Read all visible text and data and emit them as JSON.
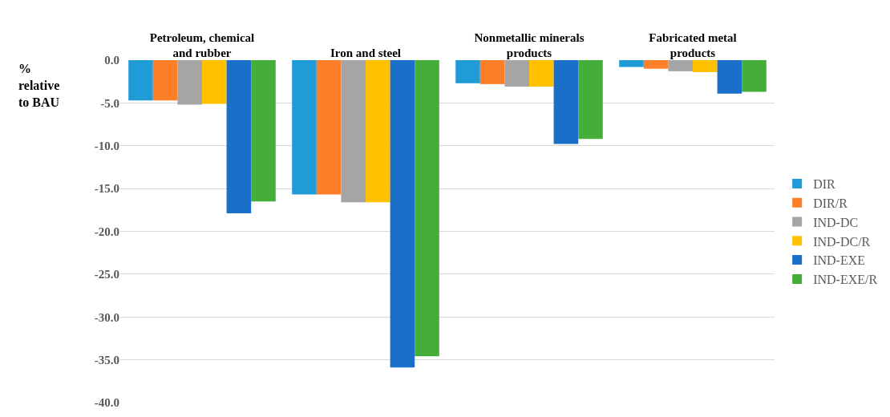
{
  "chart_data": {
    "type": "bar",
    "ylabel": "% relative to BAU",
    "categories": [
      "Petroleum, chemical and rubber",
      "Iron and steel",
      "Nonmetallic minerals products",
      "Fabricated metal products"
    ],
    "series": [
      {
        "name": "DIR",
        "color": "#1f9bd7",
        "values": [
          -4.7,
          -15.7,
          -2.7,
          -0.8
        ]
      },
      {
        "name": "DIR/R",
        "color": "#fd7f27",
        "values": [
          -4.7,
          -15.7,
          -2.8,
          -1.0
        ]
      },
      {
        "name": "IND-DC",
        "color": "#a5a5a5",
        "values": [
          -5.2,
          -16.6,
          -3.1,
          -1.3
        ]
      },
      {
        "name": "IND-DC/R",
        "color": "#ffc000",
        "values": [
          -5.1,
          -16.6,
          -3.1,
          -1.4
        ]
      },
      {
        "name": "IND-EXE",
        "color": "#1a70c8",
        "values": [
          -17.9,
          -35.9,
          -9.8,
          -3.9
        ]
      },
      {
        "name": "IND-EXE/R",
        "color": "#45ae3b",
        "values": [
          -16.5,
          -34.6,
          -9.2,
          -3.7
        ]
      }
    ],
    "ylim": [
      -40,
      0
    ],
    "yticks": [
      {
        "value": 0,
        "label": "0.0"
      },
      {
        "value": -5,
        "label": "-5.0"
      },
      {
        "value": -10,
        "label": "-10.0"
      },
      {
        "value": -15,
        "label": "-15.0"
      },
      {
        "value": -20,
        "label": "-20.0"
      },
      {
        "value": -25,
        "label": "-25.0"
      },
      {
        "value": -30,
        "label": "-30.0"
      },
      {
        "value": -35,
        "label": "-35.0"
      },
      {
        "value": -40,
        "label": "-40.0"
      }
    ],
    "grid": "y",
    "legend": "right"
  }
}
